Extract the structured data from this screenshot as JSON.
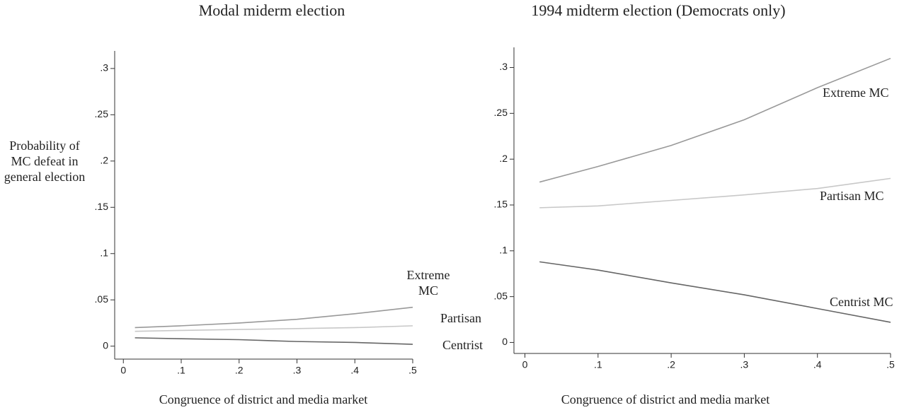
{
  "chart_data": [
    {
      "type": "line",
      "title": "Modal miderm election",
      "y_label": "Probability of MC defeat in general election",
      "x_label": "Congruence of district and media market",
      "x": [
        0.02,
        0.1,
        0.2,
        0.3,
        0.4,
        0.5
      ],
      "series": [
        {
          "name": "Extreme MC",
          "color": "#999999",
          "values": [
            0.02,
            0.022,
            0.025,
            0.029,
            0.035,
            0.042
          ]
        },
        {
          "name": "Partisan",
          "color": "#c8c8c8",
          "values": [
            0.016,
            0.017,
            0.018,
            0.019,
            0.02,
            0.022
          ]
        },
        {
          "name": "Centrist",
          "color": "#666666",
          "values": [
            0.009,
            0.008,
            0.007,
            0.005,
            0.004,
            0.002
          ]
        }
      ],
      "xlim": [
        -0.015,
        0.5
      ],
      "ylim": [
        -0.014,
        0.319
      ],
      "xticks": [
        0,
        {
          "value": 0.1,
          "label": ".1"
        },
        {
          "value": 0.2,
          "label": ".2"
        },
        {
          "value": 0.3,
          "label": ".3"
        },
        {
          "value": 0.4,
          "label": ".4"
        },
        {
          "value": 0.5,
          "label": ".5"
        }
      ],
      "yticks": [
        0,
        {
          "value": 0.05,
          "label": ".05"
        },
        {
          "value": 0.1,
          "label": ".1"
        },
        {
          "value": 0.15,
          "label": ".15"
        },
        {
          "value": 0.2,
          "label": ".2"
        },
        {
          "value": 0.25,
          "label": ".25"
        },
        {
          "value": 0.3,
          "label": ".3"
        }
      ]
    },
    {
      "type": "line",
      "title": "1994 midterm election (Democrats only)",
      "x_label": "Congruence of district and media market",
      "x": [
        0.02,
        0.1,
        0.2,
        0.3,
        0.4,
        0.5
      ],
      "series": [
        {
          "name": "Extreme MC",
          "color": "#999999",
          "values": [
            0.175,
            0.192,
            0.215,
            0.243,
            0.278,
            0.31
          ]
        },
        {
          "name": "Partisan MC",
          "color": "#c8c8c8",
          "values": [
            0.147,
            0.149,
            0.155,
            0.161,
            0.168,
            0.179
          ]
        },
        {
          "name": "Centrist MC",
          "color": "#666666",
          "values": [
            0.088,
            0.079,
            0.065,
            0.052,
            0.037,
            0.022
          ]
        }
      ],
      "xlim": [
        -0.015,
        0.5
      ],
      "ylim": [
        -0.012,
        0.322
      ],
      "xticks": [
        0,
        {
          "value": 0.1,
          "label": ".1"
        },
        {
          "value": 0.2,
          "label": ".2"
        },
        {
          "value": 0.3,
          "label": ".3"
        },
        {
          "value": 0.4,
          "label": ".4"
        },
        {
          "value": 0.5,
          "label": ".5"
        }
      ],
      "yticks": [
        0,
        {
          "value": 0.05,
          "label": ".05"
        },
        {
          "value": 0.1,
          "label": ".1"
        },
        {
          "value": 0.15,
          "label": ".15"
        },
        {
          "value": 0.2,
          "label": ".2"
        },
        {
          "value": 0.25,
          "label": ".25"
        },
        {
          "value": 0.3,
          "label": ".3"
        }
      ]
    }
  ]
}
